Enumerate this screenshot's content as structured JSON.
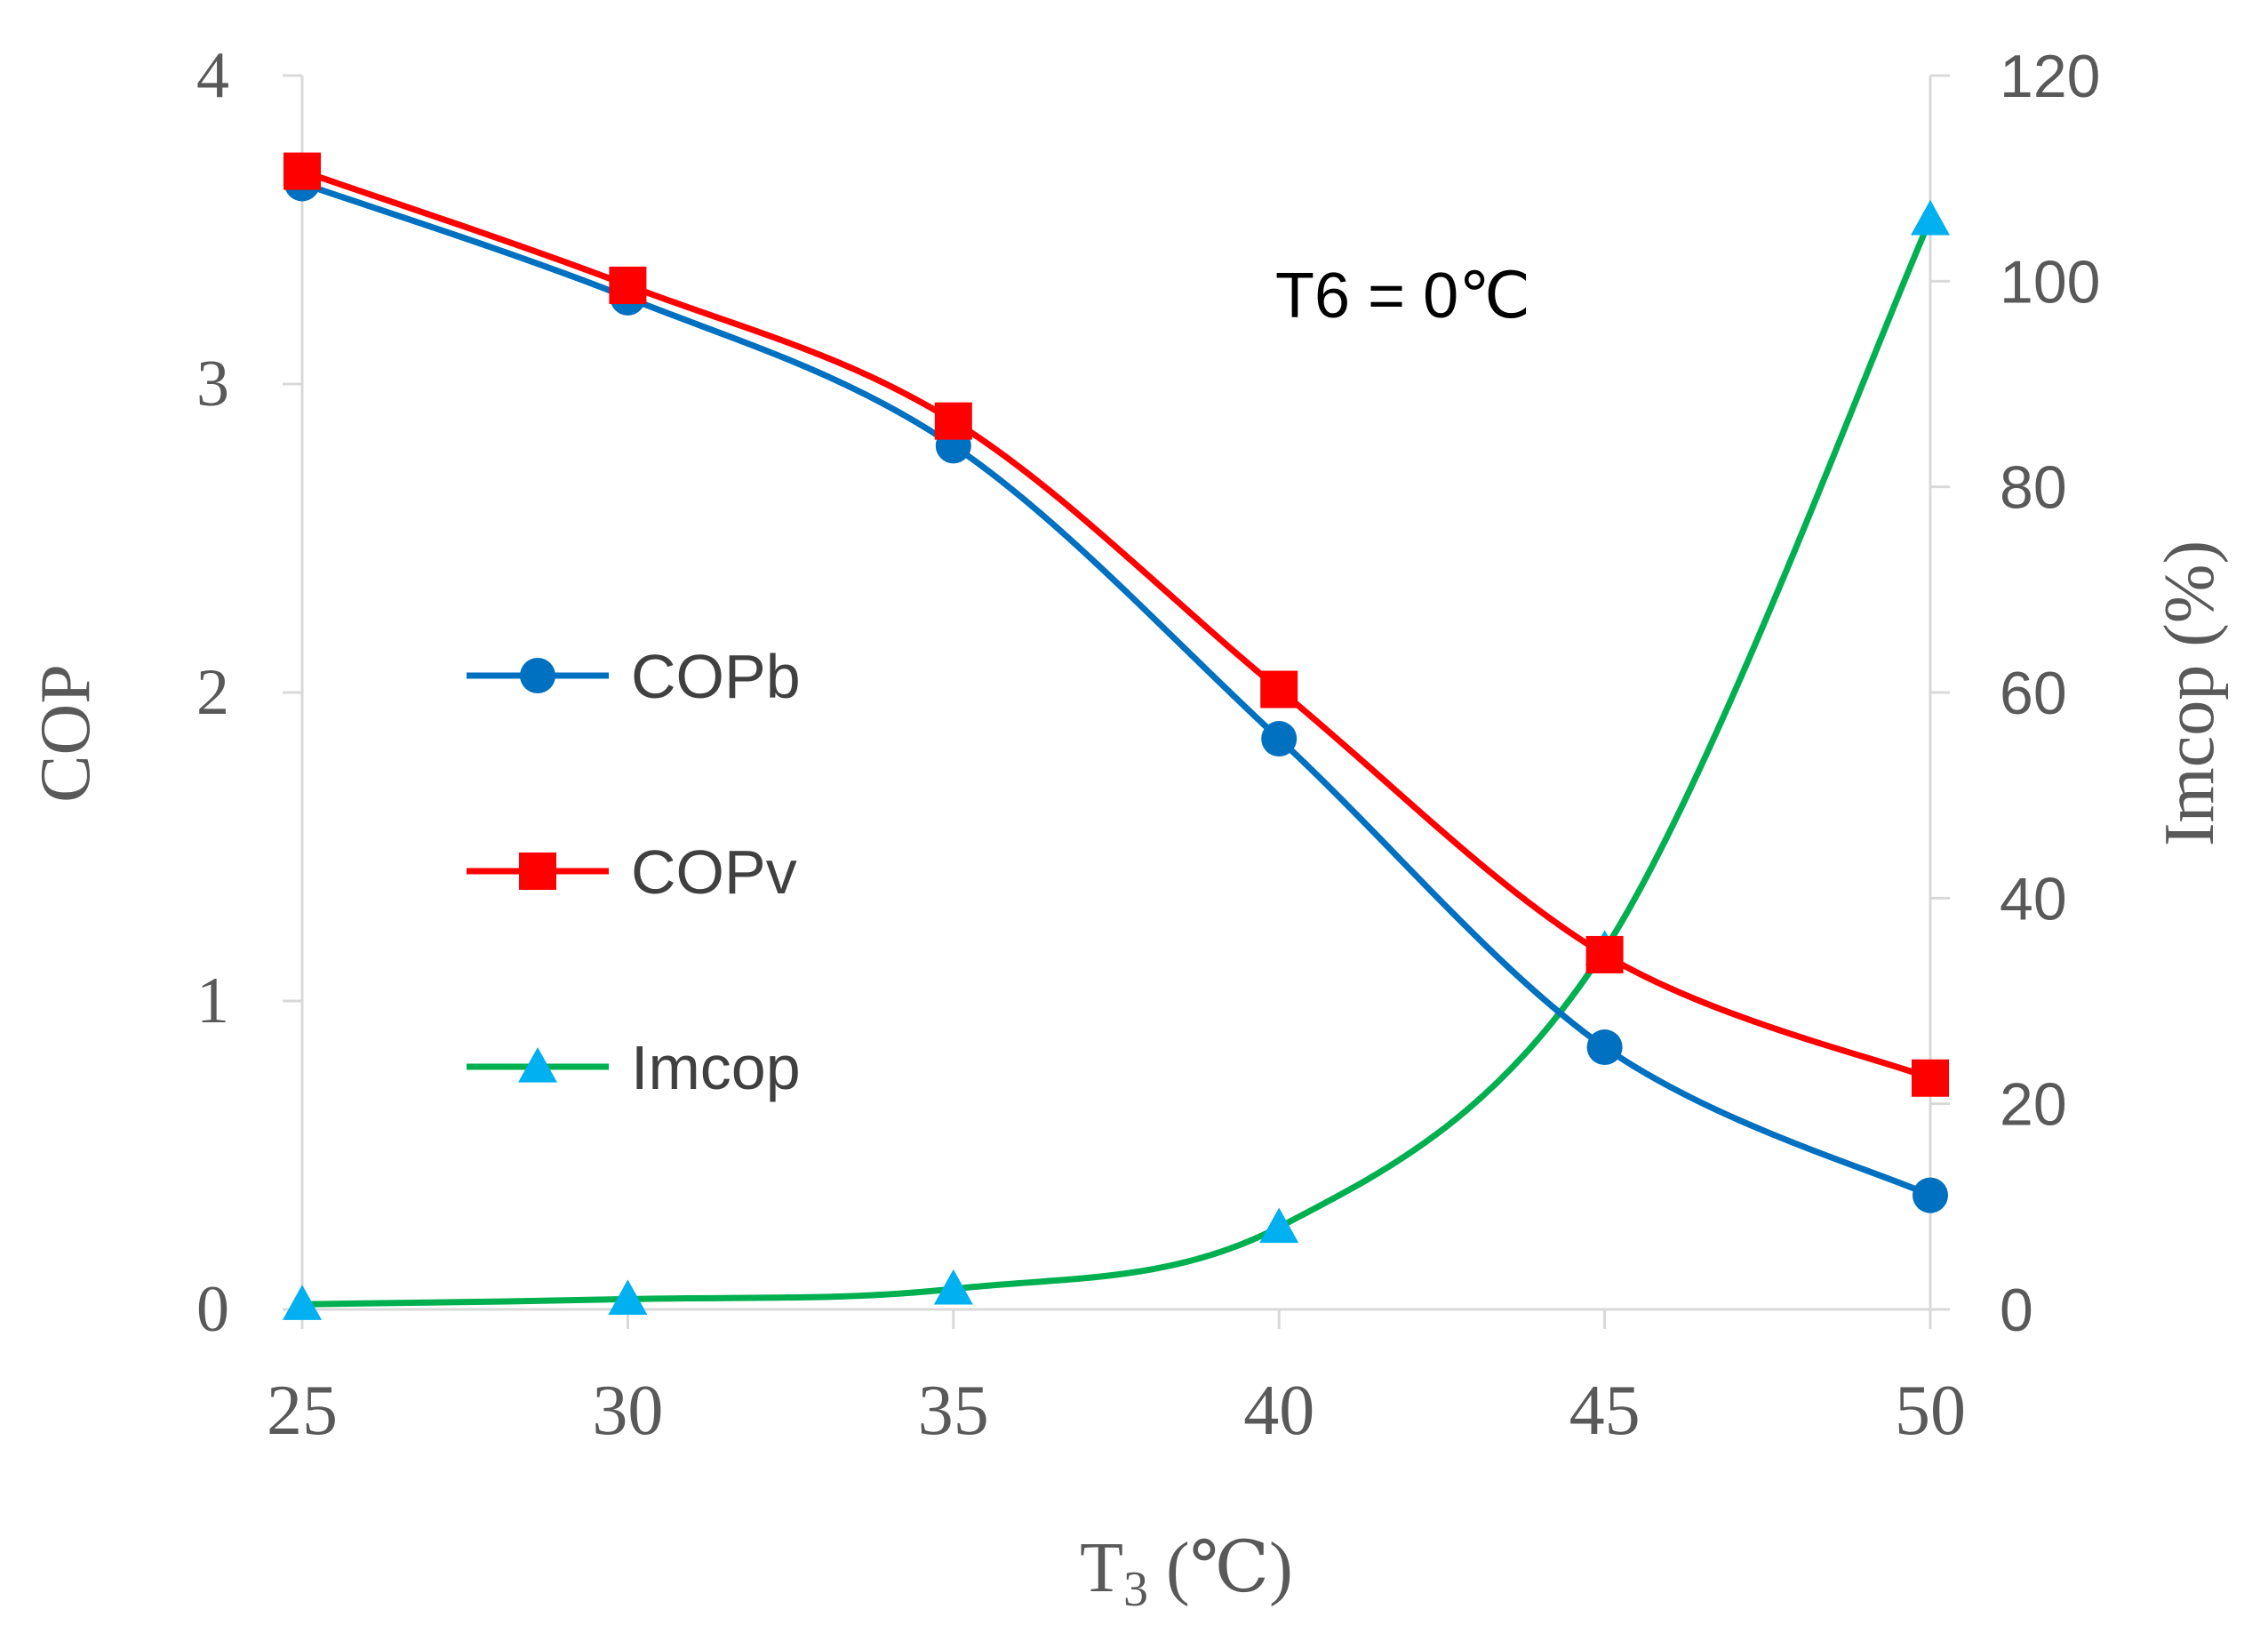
{
  "chart_data": {
    "type": "line",
    "annotation": "T6 = 0℃",
    "xlabel": "T3 (℃)",
    "xlabel_main": "T",
    "xlabel_sub": "3",
    "xlabel_unit": "(℃)",
    "ylabel": "COP",
    "y2label": "Imcop (%)",
    "x": [
      25,
      30,
      35,
      40,
      45,
      50
    ],
    "x_ticks": [
      "25",
      "30",
      "35",
      "40",
      "45",
      "50"
    ],
    "xlim": [
      25,
      50
    ],
    "ylim": [
      0,
      4
    ],
    "y_ticks": [
      "0",
      "1",
      "2",
      "3",
      "4"
    ],
    "y2lim": [
      0,
      120
    ],
    "y2_ticks": [
      "0",
      "20",
      "40",
      "60",
      "80",
      "100",
      "120"
    ],
    "legend_position": "left-middle",
    "series": [
      {
        "name": "COPb",
        "axis": "left",
        "color": "#0070C0",
        "marker": "circle",
        "values": [
          3.65,
          3.28,
          2.8,
          1.85,
          0.85,
          0.37
        ]
      },
      {
        "name": "COPv",
        "axis": "left",
        "color": "#FF0000",
        "marker": "square",
        "values": [
          3.69,
          3.32,
          2.88,
          2.01,
          1.15,
          0.75
        ]
      },
      {
        "name": "Imcop",
        "axis": "right",
        "color": "#00B050",
        "marker": "triangle",
        "marker_color": "#00B0F0",
        "values": [
          0.5,
          1.0,
          2.0,
          8.0,
          35.0,
          106.0
        ]
      }
    ]
  }
}
